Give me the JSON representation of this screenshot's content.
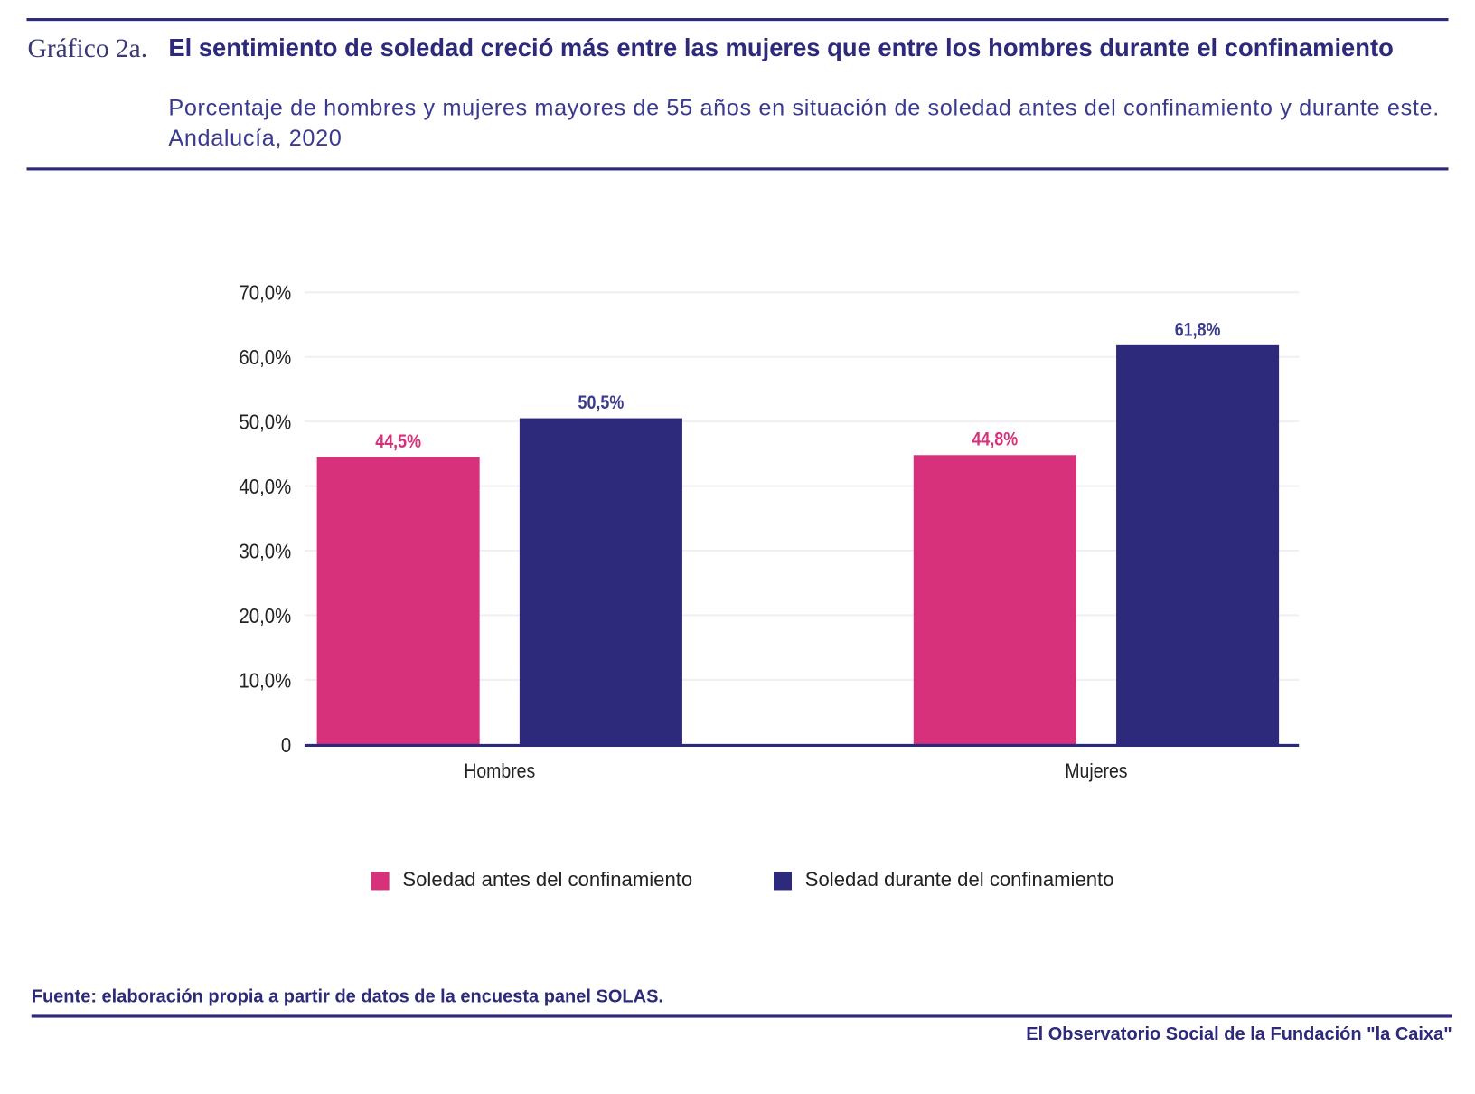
{
  "header": {
    "label": "Gráfico 2a.",
    "title": "El sentimiento de soledad creció más entre las mujeres que entre los hombres durante el confinamiento",
    "subtitle": "Porcentaje de hombres y mujeres mayores de 55 años en situación de soledad antes del confinamiento y durante este. Andalucía, 2020"
  },
  "chart_data": {
    "type": "bar",
    "categories": [
      "Hombres",
      "Mujeres"
    ],
    "series": [
      {
        "name": "Soledad antes del confinamiento",
        "values": [
          44.5,
          44.8
        ],
        "labels": [
          "44,5%",
          "44,8%"
        ],
        "color": "#d6317a"
      },
      {
        "name": "Soledad durante del confinamiento",
        "values": [
          50.5,
          61.8
        ],
        "labels": [
          "50,5%",
          "61,8%"
        ],
        "color": "#2d2a7b"
      }
    ],
    "yticks": [
      0,
      10,
      20,
      30,
      40,
      50,
      60,
      70
    ],
    "ytick_labels": [
      "0",
      "10,0%",
      "20,0%",
      "30,0%",
      "40,0%",
      "50,0%",
      "60,0%",
      "70,0%"
    ],
    "ylim": [
      0,
      70
    ],
    "grid": true,
    "legend": "bottom"
  },
  "footer": {
    "source": "Fuente:  elaboración propia a partir de datos de la encuesta panel SOLAS.",
    "brand": "El Observatorio Social de la Fundación \"la Caixa\""
  }
}
